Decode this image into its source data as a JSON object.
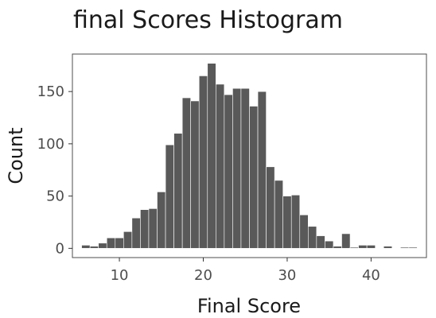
{
  "chart_data": {
    "type": "bar",
    "title": "final Scores Histogram",
    "xlabel": "Final Score",
    "ylabel": "Count",
    "bin_width": 1,
    "x": [
      6,
      7,
      8,
      9,
      10,
      11,
      12,
      13,
      14,
      15,
      16,
      17,
      18,
      19,
      20,
      21,
      22,
      23,
      24,
      25,
      26,
      27,
      28,
      29,
      30,
      31,
      32,
      33,
      34,
      35,
      36,
      37,
      38,
      39,
      40,
      41,
      42,
      43,
      44,
      45
    ],
    "values": [
      3,
      2,
      5,
      10,
      10,
      16,
      29,
      37,
      38,
      54,
      99,
      110,
      144,
      141,
      165,
      177,
      157,
      147,
      153,
      153,
      136,
      150,
      78,
      65,
      50,
      51,
      32,
      21,
      12,
      7,
      2,
      14,
      1,
      3,
      3,
      0,
      2,
      0,
      1,
      1
    ],
    "xlim": [
      4.4,
      46.6
    ],
    "ylim": [
      -8.85,
      185.85
    ],
    "xticks": [
      10,
      20,
      30,
      40
    ],
    "yticks": [
      0,
      50,
      100,
      150
    ],
    "grid": false,
    "colors": {
      "bar_fill": "#595959",
      "bar_edge": "#ffffff",
      "panel_border": "#4d4d4d",
      "tick_color": "#333333"
    }
  }
}
